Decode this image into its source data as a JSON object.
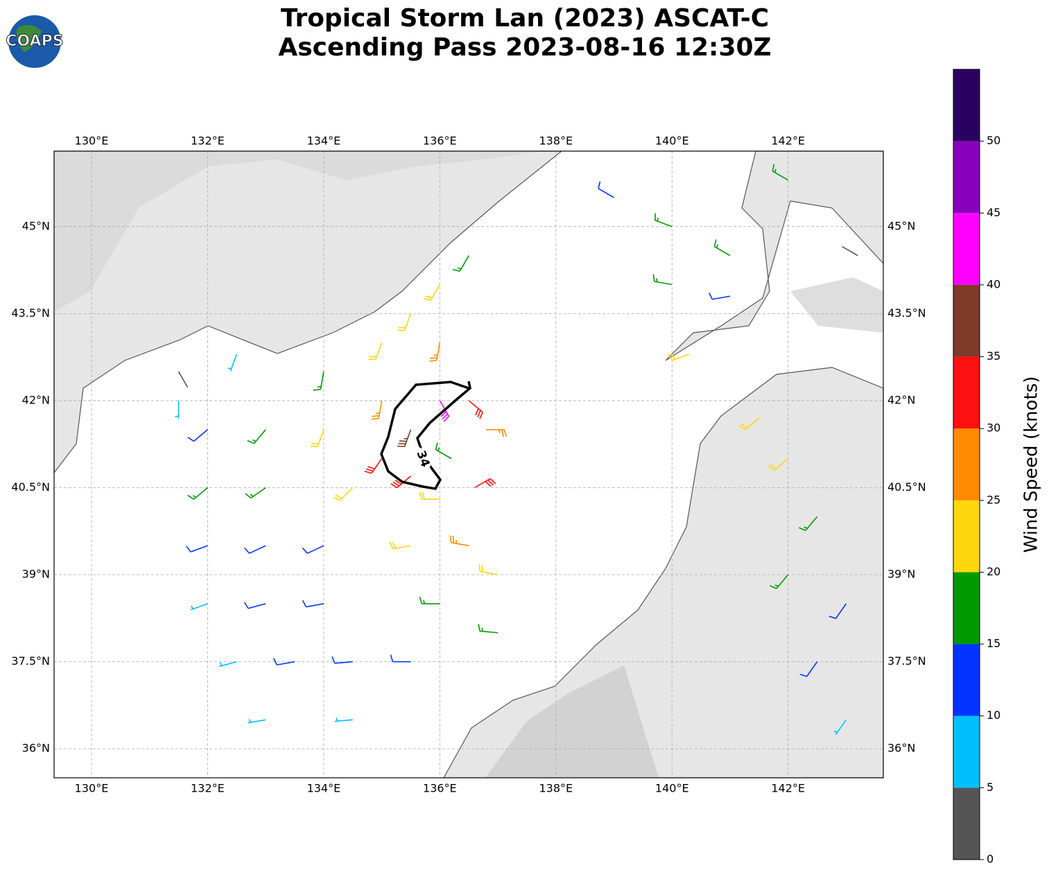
{
  "map": {
    "logo": "COAPS",
    "title_lines": [
      "Tropical Storm Lan (2023) ASCAT-C",
      "Ascending Pass 2023-08-16 12:30Z"
    ],
    "lonlim": [
      129.355,
      143.64
    ],
    "latlim": [
      35.5,
      46.3
    ],
    "lonticks": [
      {
        "value": 130,
        "label": "130°E"
      },
      {
        "value": 132,
        "label": "132°E"
      },
      {
        "value": 134,
        "label": "134°E"
      },
      {
        "value": 136,
        "label": "136°E"
      },
      {
        "value": 138,
        "label": "138°E"
      },
      {
        "value": 140,
        "label": "140°E"
      },
      {
        "value": 142,
        "label": "142°E"
      }
    ],
    "latticks": [
      {
        "value": 36,
        "label": "36°N"
      },
      {
        "value": 37.5,
        "label": "37.5°N"
      },
      {
        "value": 39,
        "label": "39°N"
      },
      {
        "value": 40.5,
        "label": "40.5°N"
      },
      {
        "value": 42,
        "label": "42°N"
      },
      {
        "value": 43.5,
        "label": "43.5°N"
      },
      {
        "value": 45,
        "label": "45°N"
      }
    ],
    "grid": true,
    "contour_label": "34",
    "colorbar": {
      "label": "Wind Speed (knots)",
      "lim": [
        0,
        55
      ],
      "ticks": [
        0,
        5,
        10,
        15,
        20,
        25,
        30,
        35,
        40,
        45,
        50
      ],
      "levels": [
        0,
        5,
        10,
        15,
        20,
        25,
        30,
        35,
        40,
        45,
        50,
        55
      ],
      "colors": [
        "#555555",
        "#00bfff",
        "#0033ff",
        "#009900",
        "#ffd710",
        "#ff8c00",
        "#ff1010",
        "#7f3a2a",
        "#ff00ff",
        "#8800bb",
        "#2a0060"
      ]
    },
    "barbs": [
      [
        132,
        38.5,
        8,
        250
      ],
      [
        133,
        38.5,
        12,
        255
      ],
      [
        134,
        38.5,
        13,
        260
      ],
      [
        132.5,
        37.5,
        9,
        255
      ],
      [
        133.5,
        37.5,
        12,
        260
      ],
      [
        134.5,
        37.5,
        13,
        265
      ],
      [
        135.5,
        37.5,
        14,
        270
      ],
      [
        133,
        36.5,
        8,
        260
      ],
      [
        134.5,
        36.5,
        9,
        265
      ],
      [
        132,
        39.5,
        12,
        250
      ],
      [
        133,
        39.5,
        10,
        245
      ],
      [
        134,
        39.5,
        11,
        245
      ],
      [
        132,
        41.5,
        14,
        230
      ],
      [
        132,
        40.5,
        16,
        230
      ],
      [
        133,
        41.5,
        16,
        220
      ],
      [
        133,
        40.5,
        15,
        235
      ],
      [
        131.5,
        42,
        7,
        180
      ],
      [
        131.5,
        42.5,
        3,
        150
      ],
      [
        132.5,
        42.8,
        7,
        200
      ],
      [
        134,
        41.5,
        22,
        200
      ],
      [
        134,
        42.5,
        17,
        190
      ],
      [
        134.5,
        40.5,
        20,
        225
      ],
      [
        135,
        42,
        28,
        190
      ],
      [
        135,
        41,
        30,
        215
      ],
      [
        135.5,
        41.5,
        36,
        200
      ],
      [
        135.5,
        40.7,
        32,
        230
      ],
      [
        136,
        42,
        42,
        150
      ],
      [
        136.5,
        42,
        33,
        130
      ],
      [
        136.2,
        41,
        18,
        300
      ],
      [
        136.8,
        41.5,
        27,
        90
      ],
      [
        136.6,
        40.5,
        31,
        60
      ],
      [
        136,
        40.3,
        24,
        270
      ],
      [
        135.5,
        39.5,
        20,
        260
      ],
      [
        136.5,
        39.5,
        26,
        280
      ],
      [
        137,
        39,
        24,
        280
      ],
      [
        136,
        38.5,
        18,
        270
      ],
      [
        137,
        38,
        17,
        275
      ],
      [
        135,
        43,
        22,
        200
      ],
      [
        135.5,
        43.5,
        21,
        200
      ],
      [
        136,
        44,
        22,
        210
      ],
      [
        136.5,
        44.5,
        19,
        210
      ],
      [
        136,
        43,
        25,
        190
      ],
      [
        139,
        45.5,
        12,
        300
      ],
      [
        140,
        45,
        15,
        290
      ],
      [
        141,
        44.5,
        16,
        300
      ],
      [
        140,
        44,
        17,
        280
      ],
      [
        141,
        43.8,
        10,
        260
      ],
      [
        142,
        45.8,
        17,
        300
      ],
      [
        140.3,
        42.8,
        22,
        250
      ],
      [
        141.5,
        41.7,
        22,
        230
      ],
      [
        142,
        41,
        20,
        230
      ],
      [
        142.5,
        40,
        17,
        220
      ],
      [
        142,
        39,
        18,
        220
      ],
      [
        143,
        38.5,
        12,
        215
      ],
      [
        142.5,
        37.5,
        11,
        215
      ],
      [
        143,
        36.5,
        9,
        215
      ],
      [
        143.2,
        44.5,
        4,
        300
      ]
    ]
  }
}
